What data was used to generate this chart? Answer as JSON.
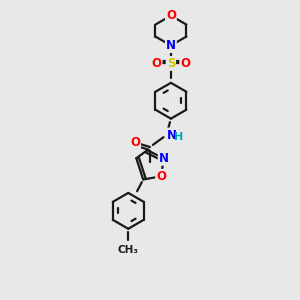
{
  "bg_color": "#e8e8e8",
  "bond_color": "#1a1a1a",
  "bond_width": 1.6,
  "atom_colors": {
    "C": "#1a1a1a",
    "N": "#0000ff",
    "O": "#ff0000",
    "S": "#cccc00",
    "H": "#00aaaa"
  },
  "font_size": 8.5,
  "fig_size": [
    3.0,
    3.0
  ],
  "dpi": 100,
  "xlim": [
    0,
    10
  ],
  "ylim": [
    0,
    10
  ]
}
